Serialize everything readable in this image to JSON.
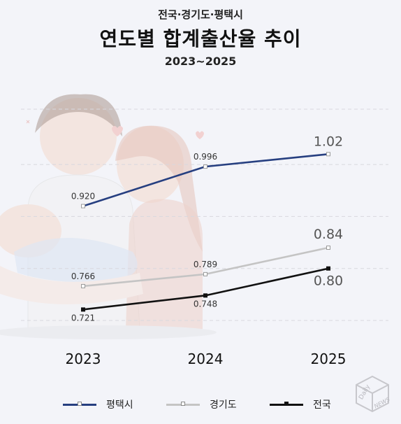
{
  "header": {
    "subtitle": "전국·경기도·평택시",
    "title": "연도별 합계출산율 추이",
    "period": "2023~2025"
  },
  "chart_data": {
    "type": "line",
    "title": "연도별 합계출산율 추이",
    "categories": [
      "2023",
      "2024",
      "2025"
    ],
    "series": [
      {
        "name": "평택시",
        "values": [
          0.92,
          0.996,
          1.02
        ],
        "labels": [
          "0.920",
          "0.996",
          "1.02"
        ],
        "color": "#263f80"
      },
      {
        "name": "경기도",
        "values": [
          0.766,
          0.789,
          0.84
        ],
        "labels": [
          "0.766",
          "0.789",
          "0.84"
        ],
        "color": "#c4c4c4"
      },
      {
        "name": "전국",
        "values": [
          0.721,
          0.748,
          0.8
        ],
        "labels": [
          "0.721",
          "0.748",
          "0.80"
        ],
        "color": "#111111"
      }
    ],
    "grid": true,
    "legend": "bottom"
  },
  "logo": {
    "text": "Daily NEWS"
  }
}
